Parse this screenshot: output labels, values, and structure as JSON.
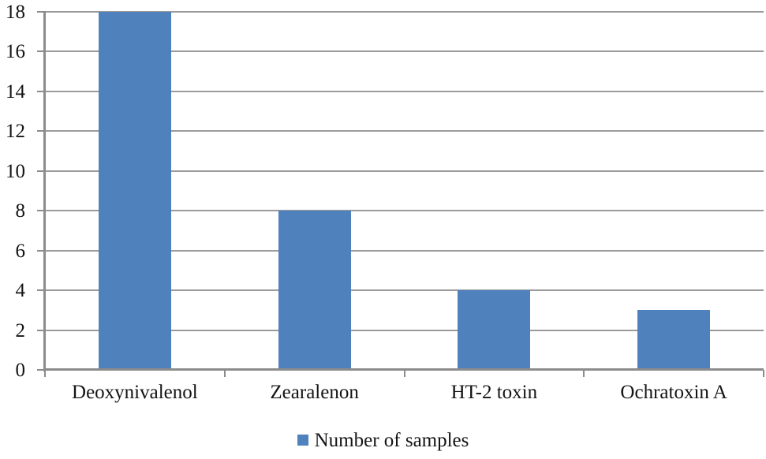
{
  "chart_data": {
    "type": "bar",
    "title": "",
    "xlabel": "",
    "ylabel": "",
    "categories": [
      "Deoxynivalenol",
      "Zearalenon",
      "HT-2 toxin",
      "Ochratoxin A"
    ],
    "values": [
      18,
      8,
      4,
      3
    ],
    "series_name": "Number of samples",
    "ylim": [
      0,
      18
    ],
    "ytick_step": 2,
    "y_tick_labels": [
      "0",
      "2",
      "4",
      "6",
      "8",
      "10",
      "12",
      "14",
      "16",
      "18"
    ],
    "grid": true,
    "legend": {
      "label": "Number of samples",
      "position": "bottom"
    },
    "colors": {
      "bar": "#4F81BD",
      "gridline": "#9b9b9b",
      "axis": "#8c8c8c",
      "text": "#141414"
    }
  }
}
